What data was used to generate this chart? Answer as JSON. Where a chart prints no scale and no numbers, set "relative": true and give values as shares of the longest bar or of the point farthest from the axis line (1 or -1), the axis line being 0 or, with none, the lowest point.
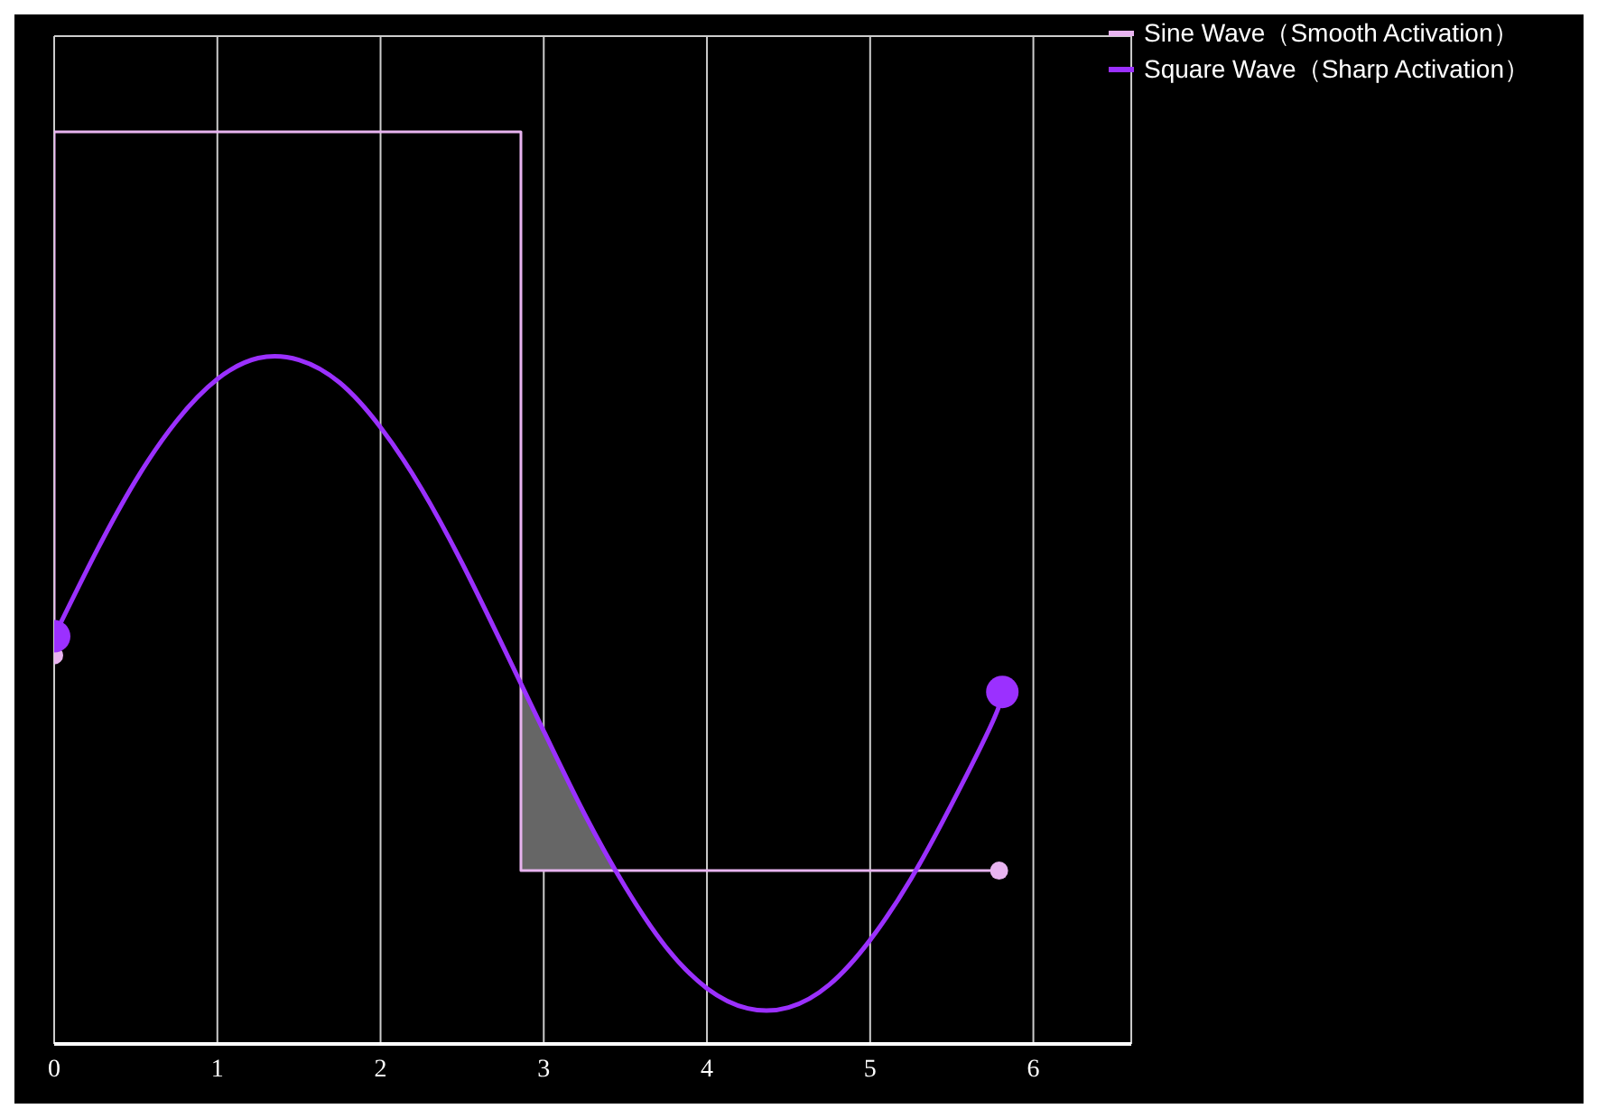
{
  "chart_data": {
    "type": "line",
    "relative": true,
    "xlim": [
      0,
      6.6
    ],
    "xticks": [
      0,
      1,
      2,
      3,
      4,
      5,
      6
    ],
    "grid": true,
    "legend": "top right",
    "series": [
      {
        "name": "Sine Wave（Smooth Activation）",
        "color": "#e8b4f0",
        "x": [
          0,
          0,
          2.86,
          2.86,
          5.79
        ],
        "values": [
          0.426,
          1,
          1,
          0.19,
          0.19
        ]
      },
      {
        "name": "Square Wave（Sharp Activation）",
        "color": "#9b30ff",
        "x": [
          0,
          0.25,
          0.5,
          0.75,
          1,
          1.25,
          1.5,
          1.75,
          2,
          2.25,
          2.5,
          2.75,
          3,
          3.25,
          3.5,
          3.75,
          4,
          4.25,
          4.5,
          4.75,
          5,
          5.25,
          5.5,
          5.75,
          5.81
        ],
        "values": [
          0.447,
          0.537,
          0.618,
          0.683,
          0.729,
          0.752,
          0.75,
          0.725,
          0.676,
          0.609,
          0.527,
          0.436,
          0.343,
          0.252,
          0.172,
          0.106,
          0.061,
          0.039,
          0.04,
          0.065,
          0.114,
          0.181,
          0.263,
          0.353,
          0.386
        ]
      }
    ]
  }
}
